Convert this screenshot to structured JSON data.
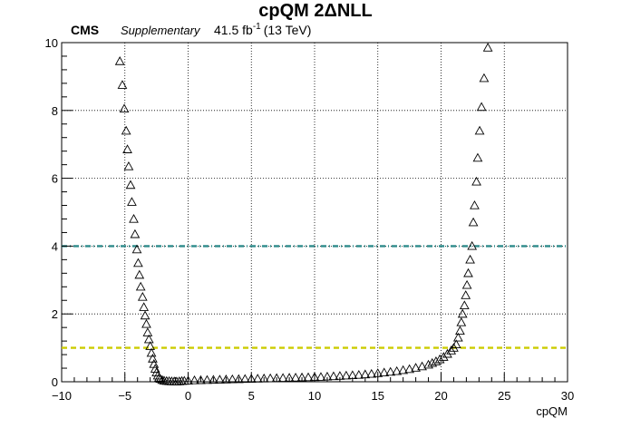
{
  "chart_data": {
    "type": "scatter",
    "title": "cpQM 2ΔNLL",
    "xlabel": "cpQM",
    "ylabel": "",
    "xlim": [
      -10,
      30
    ],
    "ylim": [
      0,
      10
    ],
    "xticks": [
      -10,
      -5,
      0,
      5,
      10,
      15,
      20,
      25,
      30
    ],
    "yticks": [
      0,
      2,
      4,
      6,
      8,
      10
    ],
    "grid": true,
    "marker": "open-triangle",
    "label_cms": "CMS",
    "label_supplementary": "Supplementary",
    "label_lumi": "41.5 fb",
    "label_lumi_exp": "-1",
    "label_energy": "(13 TeV)",
    "reference_lines": [
      {
        "y": 4,
        "color": "#2e8b8b",
        "style": "dash-dot"
      },
      {
        "y": 1,
        "color": "#cccc00",
        "style": "dashed"
      }
    ],
    "series": [
      {
        "values": [
          [
            -5.4,
            9.45
          ],
          [
            -5.2,
            8.75
          ],
          [
            -5.05,
            8.05
          ],
          [
            -4.9,
            7.4
          ],
          [
            -4.8,
            6.85
          ],
          [
            -4.7,
            6.35
          ],
          [
            -4.55,
            5.8
          ],
          [
            -4.45,
            5.3
          ],
          [
            -4.3,
            4.8
          ],
          [
            -4.2,
            4.35
          ],
          [
            -4.05,
            3.9
          ],
          [
            -3.95,
            3.5
          ],
          [
            -3.85,
            3.15
          ],
          [
            -3.75,
            2.8
          ],
          [
            -3.6,
            2.5
          ],
          [
            -3.5,
            2.2
          ],
          [
            -3.4,
            1.95
          ],
          [
            -3.3,
            1.7
          ],
          [
            -3.2,
            1.45
          ],
          [
            -3.1,
            1.25
          ],
          [
            -3.0,
            1.05
          ],
          [
            -2.9,
            0.85
          ],
          [
            -2.8,
            0.68
          ],
          [
            -2.7,
            0.52
          ],
          [
            -2.6,
            0.38
          ],
          [
            -2.5,
            0.27
          ],
          [
            -2.4,
            0.18
          ],
          [
            -2.3,
            0.12
          ],
          [
            -2.2,
            0.08
          ],
          [
            -2.05,
            0.05
          ],
          [
            -1.9,
            0.03
          ],
          [
            -1.7,
            0.02
          ],
          [
            -1.5,
            0.015
          ],
          [
            -1.3,
            0.01
          ],
          [
            -1.1,
            0.008
          ],
          [
            -0.9,
            0.005
          ],
          [
            -0.7,
            0.01
          ],
          [
            -0.5,
            0.02
          ],
          [
            -0.3,
            0.025
          ],
          [
            0.0,
            0.03
          ],
          [
            0.5,
            0.04
          ],
          [
            1.0,
            0.045
          ],
          [
            1.5,
            0.05
          ],
          [
            2.0,
            0.055
          ],
          [
            2.5,
            0.06
          ],
          [
            3.0,
            0.065
          ],
          [
            3.5,
            0.07
          ],
          [
            4.0,
            0.075
          ],
          [
            4.5,
            0.08
          ],
          [
            5.0,
            0.085
          ],
          [
            5.5,
            0.09
          ],
          [
            6.0,
            0.095
          ],
          [
            6.5,
            0.1
          ],
          [
            7.0,
            0.105
          ],
          [
            7.5,
            0.11
          ],
          [
            8.0,
            0.115
          ],
          [
            8.5,
            0.12
          ],
          [
            9.0,
            0.125
          ],
          [
            9.5,
            0.13
          ],
          [
            10.0,
            0.135
          ],
          [
            10.5,
            0.14
          ],
          [
            11.0,
            0.15
          ],
          [
            11.5,
            0.16
          ],
          [
            12.0,
            0.17
          ],
          [
            12.5,
            0.18
          ],
          [
            13.0,
            0.19
          ],
          [
            13.5,
            0.2
          ],
          [
            14.0,
            0.215
          ],
          [
            14.5,
            0.23
          ],
          [
            15.0,
            0.25
          ],
          [
            15.5,
            0.27
          ],
          [
            16.0,
            0.29
          ],
          [
            16.5,
            0.31
          ],
          [
            17.0,
            0.34
          ],
          [
            17.5,
            0.37
          ],
          [
            18.0,
            0.41
          ],
          [
            18.5,
            0.45
          ],
          [
            19.0,
            0.5
          ],
          [
            19.3,
            0.55
          ],
          [
            19.6,
            0.6
          ],
          [
            19.9,
            0.66
          ],
          [
            20.2,
            0.73
          ],
          [
            20.5,
            0.82
          ],
          [
            20.8,
            0.92
          ],
          [
            21.0,
            1.0
          ],
          [
            21.2,
            1.1
          ],
          [
            21.35,
            1.3
          ],
          [
            21.5,
            1.5
          ],
          [
            21.6,
            1.75
          ],
          [
            21.7,
            2.0
          ],
          [
            21.85,
            2.25
          ],
          [
            21.95,
            2.55
          ],
          [
            22.05,
            2.85
          ],
          [
            22.15,
            3.2
          ],
          [
            22.3,
            3.6
          ],
          [
            22.45,
            4.0
          ],
          [
            22.55,
            4.7
          ],
          [
            22.65,
            5.2
          ],
          [
            22.8,
            5.9
          ],
          [
            22.9,
            6.6
          ],
          [
            23.05,
            7.4
          ],
          [
            23.2,
            8.1
          ],
          [
            23.4,
            8.95
          ],
          [
            23.7,
            9.85
          ]
        ]
      }
    ]
  }
}
